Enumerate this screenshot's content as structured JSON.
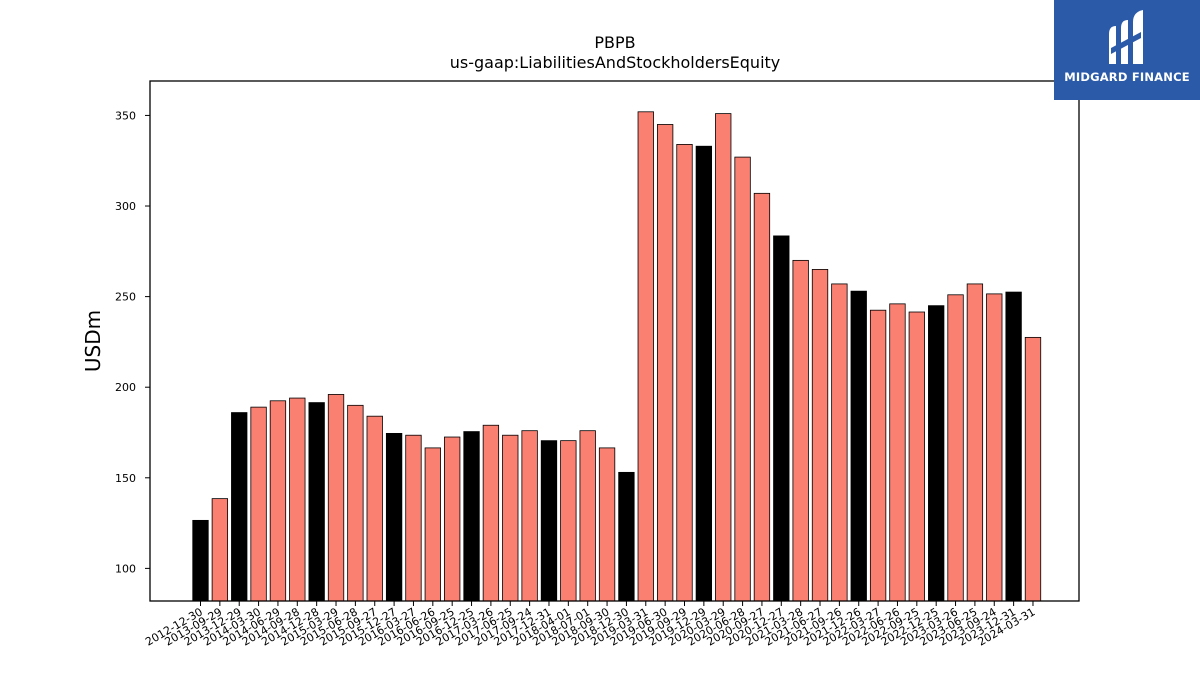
{
  "brand": {
    "name": "MIDGARD FINANCE",
    "bg_color": "#2b5aa8"
  },
  "chart_data": {
    "type": "bar",
    "title": "PBPB",
    "subtitle": "us-gaap:LiabilitiesAndStockholdersEquity",
    "xlabel": "",
    "ylabel": "USDm",
    "ylim": [
      82,
      369
    ],
    "yticks": [
      100,
      150,
      200,
      250,
      300,
      350
    ],
    "grid": false,
    "colors": {
      "quarter": "#fa8072",
      "annual": "#000000",
      "edge": "#000000"
    },
    "categories": [
      "2012-12-30",
      "2013-09-29",
      "2013-12-29",
      "2014-03-30",
      "2014-06-29",
      "2014-09-28",
      "2014-12-28",
      "2015-03-29",
      "2015-06-28",
      "2015-09-27",
      "2015-12-27",
      "2016-03-27",
      "2016-06-26",
      "2016-09-25",
      "2016-12-25",
      "2017-03-26",
      "2017-06-25",
      "2017-09-24",
      "2017-12-31",
      "2018-04-01",
      "2018-07-01",
      "2018-09-30",
      "2018-12-30",
      "2019-03-31",
      "2019-06-30",
      "2019-09-29",
      "2019-12-29",
      "2020-03-29",
      "2020-06-28",
      "2020-09-27",
      "2020-12-27",
      "2021-03-28",
      "2021-06-27",
      "2021-09-26",
      "2021-12-26",
      "2022-03-27",
      "2022-06-26",
      "2022-09-25",
      "2022-12-25",
      "2023-03-26",
      "2023-06-25",
      "2023-09-24",
      "2023-12-31",
      "2024-03-31"
    ],
    "values": [
      126.5,
      138.5,
      186,
      189,
      192.5,
      194,
      191.5,
      196,
      190,
      184,
      174.5,
      173.5,
      166.5,
      172.5,
      175.5,
      179,
      173.5,
      176,
      170.5,
      170.5,
      176,
      166.5,
      153,
      352,
      345,
      334,
      333,
      351,
      327,
      307,
      283.5,
      270,
      265,
      257,
      253,
      242.5,
      246,
      241.5,
      245,
      251,
      257,
      251.5,
      252.5,
      227.5
    ],
    "annual": [
      true,
      false,
      true,
      false,
      false,
      false,
      true,
      false,
      false,
      false,
      true,
      false,
      false,
      false,
      true,
      false,
      false,
      false,
      true,
      false,
      false,
      false,
      true,
      false,
      false,
      false,
      true,
      false,
      false,
      false,
      true,
      false,
      false,
      false,
      true,
      false,
      false,
      false,
      true,
      false,
      false,
      false,
      true,
      false
    ]
  }
}
